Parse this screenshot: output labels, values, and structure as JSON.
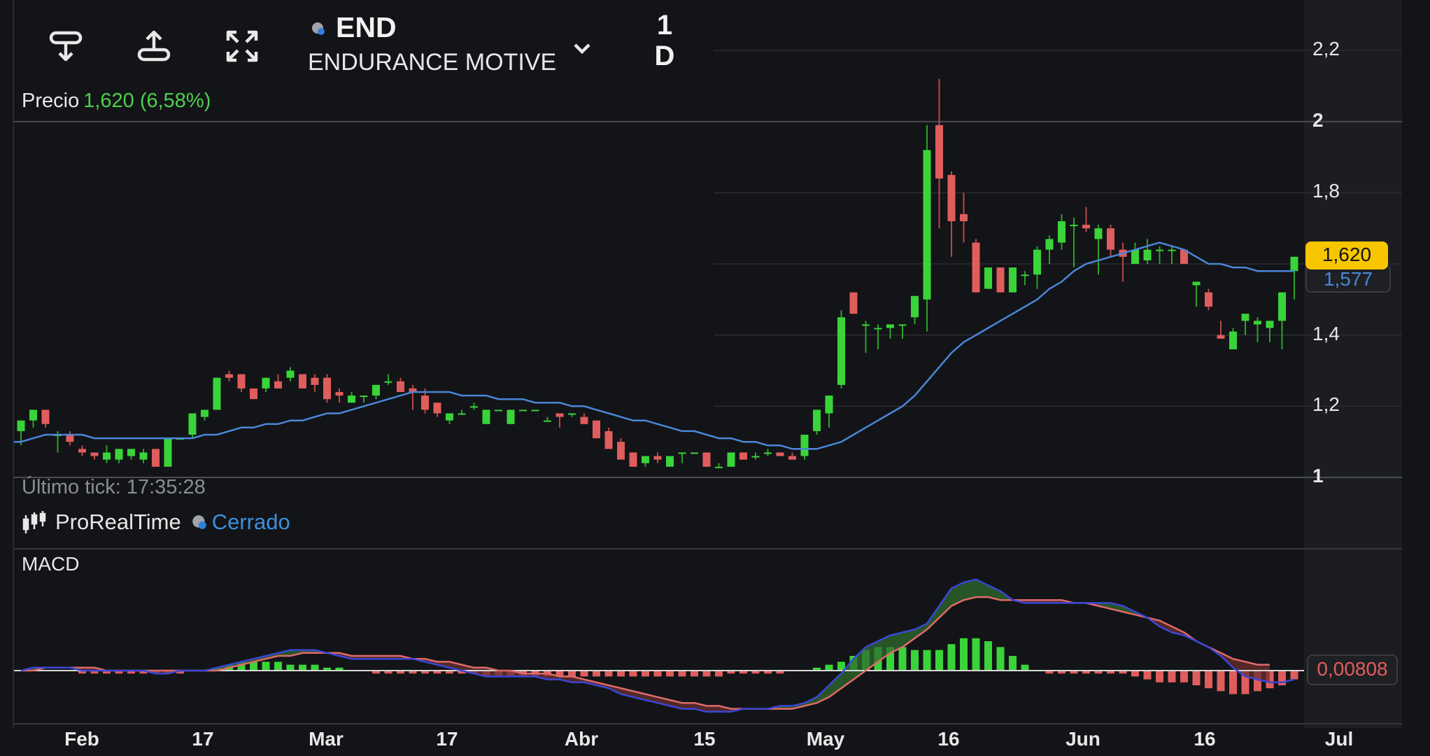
{
  "toolbar": {
    "drawing_tool": "drawing-tool-icon",
    "share": "share-icon",
    "fullscreen": "expand-icon"
  },
  "symbol": {
    "code": "END",
    "name": "ENDURANCE MOTIVE",
    "interval_top": "1",
    "interval_bottom": "D"
  },
  "price_header": {
    "label": "Precio",
    "value": "1,620 (6,58%)"
  },
  "last_tick": "Último tick: 17:35:28",
  "provider": {
    "name": "ProRealTime",
    "status": "Cerrado"
  },
  "macd_title": "MACD",
  "colors": {
    "background": "#131417",
    "up": "#39d439",
    "down": "#e05d5d",
    "ma": "#4a86d8",
    "macd_line": "#3a46d6",
    "signal_line": "#e06a6a",
    "price_badge": "#f7c600"
  },
  "chart_data": [
    {
      "type": "candlestick",
      "title": "",
      "y_ticks": [
        "2,2",
        "2",
        "1,8",
        "1,6",
        "1,4",
        "1,2",
        "1"
      ],
      "ylim": [
        1.0,
        2.2
      ],
      "x_ticks": [
        "Feb",
        "17",
        "Mar",
        "17",
        "Abr",
        "15",
        "May",
        "16",
        "Jun",
        "16",
        "Jul"
      ],
      "last_price_label": "1,620",
      "ma_label": "1,577",
      "candles": [
        [
          1.13,
          1.16,
          1.09,
          1.16
        ],
        [
          1.16,
          1.19,
          1.14,
          1.19
        ],
        [
          1.19,
          1.19,
          1.14,
          1.15
        ],
        [
          1.12,
          1.13,
          1.07,
          1.12
        ],
        [
          1.12,
          1.13,
          1.09,
          1.1
        ],
        [
          1.08,
          1.09,
          1.06,
          1.07
        ],
        [
          1.07,
          1.07,
          1.05,
          1.06
        ],
        [
          1.05,
          1.09,
          1.04,
          1.07
        ],
        [
          1.05,
          1.08,
          1.04,
          1.08
        ],
        [
          1.06,
          1.08,
          1.05,
          1.08
        ],
        [
          1.05,
          1.08,
          1.04,
          1.07
        ],
        [
          1.08,
          1.08,
          1.03,
          1.03
        ],
        [
          1.03,
          1.11,
          1.03,
          1.11
        ],
        [
          1.11,
          1.11,
          1.11,
          1.11
        ],
        [
          1.12,
          1.18,
          1.11,
          1.18
        ],
        [
          1.17,
          1.19,
          1.16,
          1.19
        ],
        [
          1.19,
          1.28,
          1.19,
          1.28
        ],
        [
          1.29,
          1.3,
          1.27,
          1.28
        ],
        [
          1.29,
          1.29,
          1.24,
          1.25
        ],
        [
          1.25,
          1.25,
          1.22,
          1.22
        ],
        [
          1.25,
          1.28,
          1.24,
          1.28
        ],
        [
          1.27,
          1.29,
          1.25,
          1.25
        ],
        [
          1.28,
          1.31,
          1.27,
          1.3
        ],
        [
          1.29,
          1.29,
          1.25,
          1.25
        ],
        [
          1.28,
          1.29,
          1.24,
          1.26
        ],
        [
          1.28,
          1.29,
          1.21,
          1.22
        ],
        [
          1.24,
          1.25,
          1.21,
          1.23
        ],
        [
          1.21,
          1.24,
          1.21,
          1.23
        ],
        [
          1.23,
          1.23,
          1.21,
          1.23
        ],
        [
          1.23,
          1.26,
          1.22,
          1.26
        ],
        [
          1.27,
          1.29,
          1.26,
          1.27
        ],
        [
          1.27,
          1.28,
          1.24,
          1.24
        ],
        [
          1.25,
          1.26,
          1.19,
          1.24
        ],
        [
          1.23,
          1.25,
          1.18,
          1.19
        ],
        [
          1.21,
          1.21,
          1.17,
          1.18
        ],
        [
          1.16,
          1.18,
          1.15,
          1.18
        ],
        [
          1.18,
          1.19,
          1.18,
          1.18
        ],
        [
          1.2,
          1.21,
          1.19,
          1.2
        ],
        [
          1.15,
          1.19,
          1.15,
          1.19
        ],
        [
          1.19,
          1.19,
          1.19,
          1.19
        ],
        [
          1.15,
          1.19,
          1.15,
          1.19
        ],
        [
          1.19,
          1.19,
          1.19,
          1.19
        ],
        [
          1.19,
          1.19,
          1.19,
          1.19
        ],
        [
          1.16,
          1.17,
          1.16,
          1.16
        ],
        [
          1.18,
          1.18,
          1.14,
          1.17
        ],
        [
          1.18,
          1.18,
          1.17,
          1.18
        ],
        [
          1.17,
          1.18,
          1.15,
          1.15
        ],
        [
          1.16,
          1.16,
          1.11,
          1.11
        ],
        [
          1.13,
          1.14,
          1.08,
          1.08
        ],
        [
          1.1,
          1.11,
          1.05,
          1.05
        ],
        [
          1.07,
          1.07,
          1.03,
          1.03
        ],
        [
          1.04,
          1.06,
          1.03,
          1.06
        ],
        [
          1.06,
          1.07,
          1.04,
          1.05
        ],
        [
          1.03,
          1.06,
          1.03,
          1.06
        ],
        [
          1.07,
          1.07,
          1.04,
          1.07
        ],
        [
          1.07,
          1.07,
          1.07,
          1.07
        ],
        [
          1.07,
          1.07,
          1.03,
          1.03
        ],
        [
          1.03,
          1.04,
          1.03,
          1.03
        ],
        [
          1.03,
          1.07,
          1.03,
          1.07
        ],
        [
          1.07,
          1.07,
          1.05,
          1.05
        ],
        [
          1.06,
          1.07,
          1.05,
          1.06
        ],
        [
          1.07,
          1.08,
          1.06,
          1.07
        ],
        [
          1.07,
          1.07,
          1.06,
          1.06
        ],
        [
          1.06,
          1.07,
          1.05,
          1.05
        ],
        [
          1.06,
          1.12,
          1.05,
          1.12
        ],
        [
          1.13,
          1.19,
          1.12,
          1.19
        ],
        [
          1.18,
          1.23,
          1.14,
          1.23
        ],
        [
          1.26,
          1.47,
          1.25,
          1.45
        ],
        [
          1.52,
          1.52,
          1.46,
          1.46
        ],
        [
          1.43,
          1.44,
          1.35,
          1.43
        ],
        [
          1.42,
          1.43,
          1.36,
          1.42
        ],
        [
          1.42,
          1.43,
          1.39,
          1.43
        ],
        [
          1.43,
          1.43,
          1.39,
          1.43
        ],
        [
          1.45,
          1.51,
          1.43,
          1.51
        ],
        [
          1.5,
          1.99,
          1.41,
          1.92
        ],
        [
          1.99,
          2.12,
          1.7,
          1.84
        ],
        [
          1.85,
          1.86,
          1.62,
          1.72
        ],
        [
          1.74,
          1.8,
          1.66,
          1.72
        ],
        [
          1.66,
          1.67,
          1.52,
          1.52
        ],
        [
          1.53,
          1.59,
          1.53,
          1.59
        ],
        [
          1.59,
          1.59,
          1.52,
          1.52
        ],
        [
          1.52,
          1.59,
          1.52,
          1.59
        ],
        [
          1.57,
          1.58,
          1.54,
          1.57
        ],
        [
          1.57,
          1.65,
          1.53,
          1.64
        ],
        [
          1.64,
          1.68,
          1.6,
          1.67
        ],
        [
          1.66,
          1.74,
          1.64,
          1.72
        ],
        [
          1.71,
          1.73,
          1.59,
          1.71
        ],
        [
          1.71,
          1.76,
          1.69,
          1.7
        ],
        [
          1.67,
          1.71,
          1.57,
          1.7
        ],
        [
          1.7,
          1.71,
          1.62,
          1.64
        ],
        [
          1.64,
          1.66,
          1.55,
          1.62
        ],
        [
          1.6,
          1.66,
          1.6,
          1.64
        ],
        [
          1.61,
          1.67,
          1.6,
          1.64
        ],
        [
          1.64,
          1.65,
          1.6,
          1.64
        ],
        [
          1.64,
          1.65,
          1.6,
          1.64
        ],
        [
          1.64,
          1.64,
          1.6,
          1.6
        ],
        [
          1.54,
          1.55,
          1.48,
          1.55
        ],
        [
          1.52,
          1.53,
          1.47,
          1.48
        ],
        [
          1.4,
          1.44,
          1.39,
          1.39
        ],
        [
          1.36,
          1.42,
          1.36,
          1.41
        ],
        [
          1.44,
          1.46,
          1.4,
          1.46
        ],
        [
          1.43,
          1.45,
          1.38,
          1.44
        ],
        [
          1.42,
          1.44,
          1.38,
          1.44
        ],
        [
          1.44,
          1.52,
          1.36,
          1.52
        ],
        [
          1.58,
          1.62,
          1.5,
          1.62
        ]
      ],
      "ma": [
        1.1,
        1.11,
        1.12,
        1.12,
        1.12,
        1.12,
        1.11,
        1.11,
        1.11,
        1.11,
        1.11,
        1.11,
        1.11,
        1.11,
        1.11,
        1.12,
        1.12,
        1.13,
        1.14,
        1.14,
        1.15,
        1.15,
        1.16,
        1.16,
        1.17,
        1.18,
        1.18,
        1.19,
        1.2,
        1.21,
        1.22,
        1.23,
        1.24,
        1.24,
        1.24,
        1.24,
        1.23,
        1.23,
        1.23,
        1.22,
        1.22,
        1.22,
        1.21,
        1.21,
        1.21,
        1.2,
        1.2,
        1.19,
        1.18,
        1.17,
        1.16,
        1.16,
        1.15,
        1.14,
        1.13,
        1.13,
        1.12,
        1.11,
        1.11,
        1.1,
        1.1,
        1.09,
        1.09,
        1.08,
        1.08,
        1.08,
        1.09,
        1.1,
        1.12,
        1.14,
        1.16,
        1.18,
        1.2,
        1.23,
        1.27,
        1.31,
        1.35,
        1.38,
        1.4,
        1.42,
        1.44,
        1.46,
        1.48,
        1.5,
        1.53,
        1.55,
        1.58,
        1.6,
        1.61,
        1.62,
        1.63,
        1.64,
        1.65,
        1.66,
        1.65,
        1.64,
        1.62,
        1.6,
        1.6,
        1.59,
        1.59,
        1.58,
        1.58,
        1.58,
        1.58
      ]
    },
    {
      "type": "macd",
      "title": "MACD",
      "value_label": "0,00808",
      "macd": [
        0.0,
        0.01,
        0.01,
        0.01,
        0.01,
        0.0,
        0.0,
        0.0,
        0.0,
        0.0,
        0.0,
        -0.01,
        -0.01,
        0.0,
        0.0,
        0.0,
        0.01,
        0.02,
        0.03,
        0.04,
        0.05,
        0.06,
        0.07,
        0.07,
        0.07,
        0.06,
        0.05,
        0.04,
        0.04,
        0.04,
        0.04,
        0.04,
        0.04,
        0.03,
        0.02,
        0.01,
        0.0,
        -0.01,
        -0.02,
        -0.02,
        -0.02,
        -0.02,
        -0.02,
        -0.03,
        -0.03,
        -0.04,
        -0.04,
        -0.05,
        -0.06,
        -0.08,
        -0.09,
        -0.1,
        -0.11,
        -0.12,
        -0.13,
        -0.13,
        -0.14,
        -0.14,
        -0.14,
        -0.13,
        -0.13,
        -0.13,
        -0.12,
        -0.12,
        -0.11,
        -0.09,
        -0.05,
        -0.01,
        0.04,
        0.08,
        0.1,
        0.12,
        0.13,
        0.14,
        0.16,
        0.22,
        0.28,
        0.3,
        0.31,
        0.29,
        0.27,
        0.24,
        0.23,
        0.23,
        0.23,
        0.23,
        0.23,
        0.23,
        0.23,
        0.23,
        0.22,
        0.2,
        0.18,
        0.15,
        0.13,
        0.12,
        0.1,
        0.08,
        0.05,
        0.01,
        -0.02,
        -0.03,
        -0.04,
        -0.04,
        -0.03
      ],
      "signal": [
        0.0,
        0.0,
        0.01,
        0.01,
        0.01,
        0.01,
        0.01,
        0.0,
        0.0,
        0.0,
        0.0,
        0.0,
        0.0,
        0.0,
        0.0,
        0.0,
        0.0,
        0.01,
        0.02,
        0.03,
        0.04,
        0.05,
        0.05,
        0.06,
        0.06,
        0.06,
        0.06,
        0.05,
        0.05,
        0.05,
        0.05,
        0.05,
        0.04,
        0.04,
        0.03,
        0.03,
        0.02,
        0.01,
        0.01,
        0.0,
        0.0,
        -0.01,
        -0.01,
        -0.01,
        -0.02,
        -0.02,
        -0.03,
        -0.04,
        -0.05,
        -0.06,
        -0.07,
        -0.08,
        -0.09,
        -0.1,
        -0.11,
        -0.11,
        -0.12,
        -0.12,
        -0.13,
        -0.13,
        -0.13,
        -0.13,
        -0.13,
        -0.13,
        -0.12,
        -0.11,
        -0.09,
        -0.06,
        -0.03,
        0.0,
        0.03,
        0.06,
        0.08,
        0.11,
        0.14,
        0.18,
        0.22,
        0.24,
        0.25,
        0.25,
        0.24,
        0.24,
        0.24,
        0.24,
        0.24,
        0.24,
        0.23,
        0.23,
        0.22,
        0.21,
        0.2,
        0.19,
        0.18,
        0.17,
        0.15,
        0.13,
        0.1,
        0.08,
        0.06,
        0.04,
        0.03,
        0.02,
        0.02
      ],
      "hist": [
        0.0,
        0.0,
        0.0,
        0.0,
        0.0,
        -0.01,
        -0.01,
        -0.01,
        -0.01,
        -0.01,
        -0.01,
        -0.01,
        -0.01,
        -0.01,
        0.0,
        0.0,
        0.01,
        0.02,
        0.03,
        0.03,
        0.03,
        0.03,
        0.02,
        0.02,
        0.02,
        0.01,
        0.01,
        0.0,
        0.0,
        -0.01,
        -0.01,
        -0.01,
        -0.01,
        -0.01,
        -0.01,
        -0.01,
        -0.01,
        -0.01,
        -0.02,
        -0.02,
        -0.02,
        -0.02,
        -0.02,
        -0.02,
        -0.02,
        -0.02,
        -0.02,
        -0.02,
        -0.02,
        -0.02,
        -0.02,
        -0.02,
        -0.02,
        -0.02,
        -0.02,
        -0.02,
        -0.02,
        -0.02,
        -0.01,
        -0.01,
        -0.01,
        -0.01,
        -0.01,
        0.0,
        0.0,
        0.01,
        0.02,
        0.03,
        0.05,
        0.07,
        0.08,
        0.08,
        0.08,
        0.07,
        0.07,
        0.07,
        0.09,
        0.11,
        0.11,
        0.1,
        0.08,
        0.05,
        0.02,
        0.0,
        -0.01,
        -0.01,
        -0.01,
        -0.01,
        -0.01,
        -0.01,
        -0.01,
        -0.02,
        -0.03,
        -0.04,
        -0.04,
        -0.04,
        -0.05,
        -0.06,
        -0.07,
        -0.08,
        -0.08,
        -0.07,
        -0.06,
        -0.05,
        -0.03
      ]
    }
  ]
}
